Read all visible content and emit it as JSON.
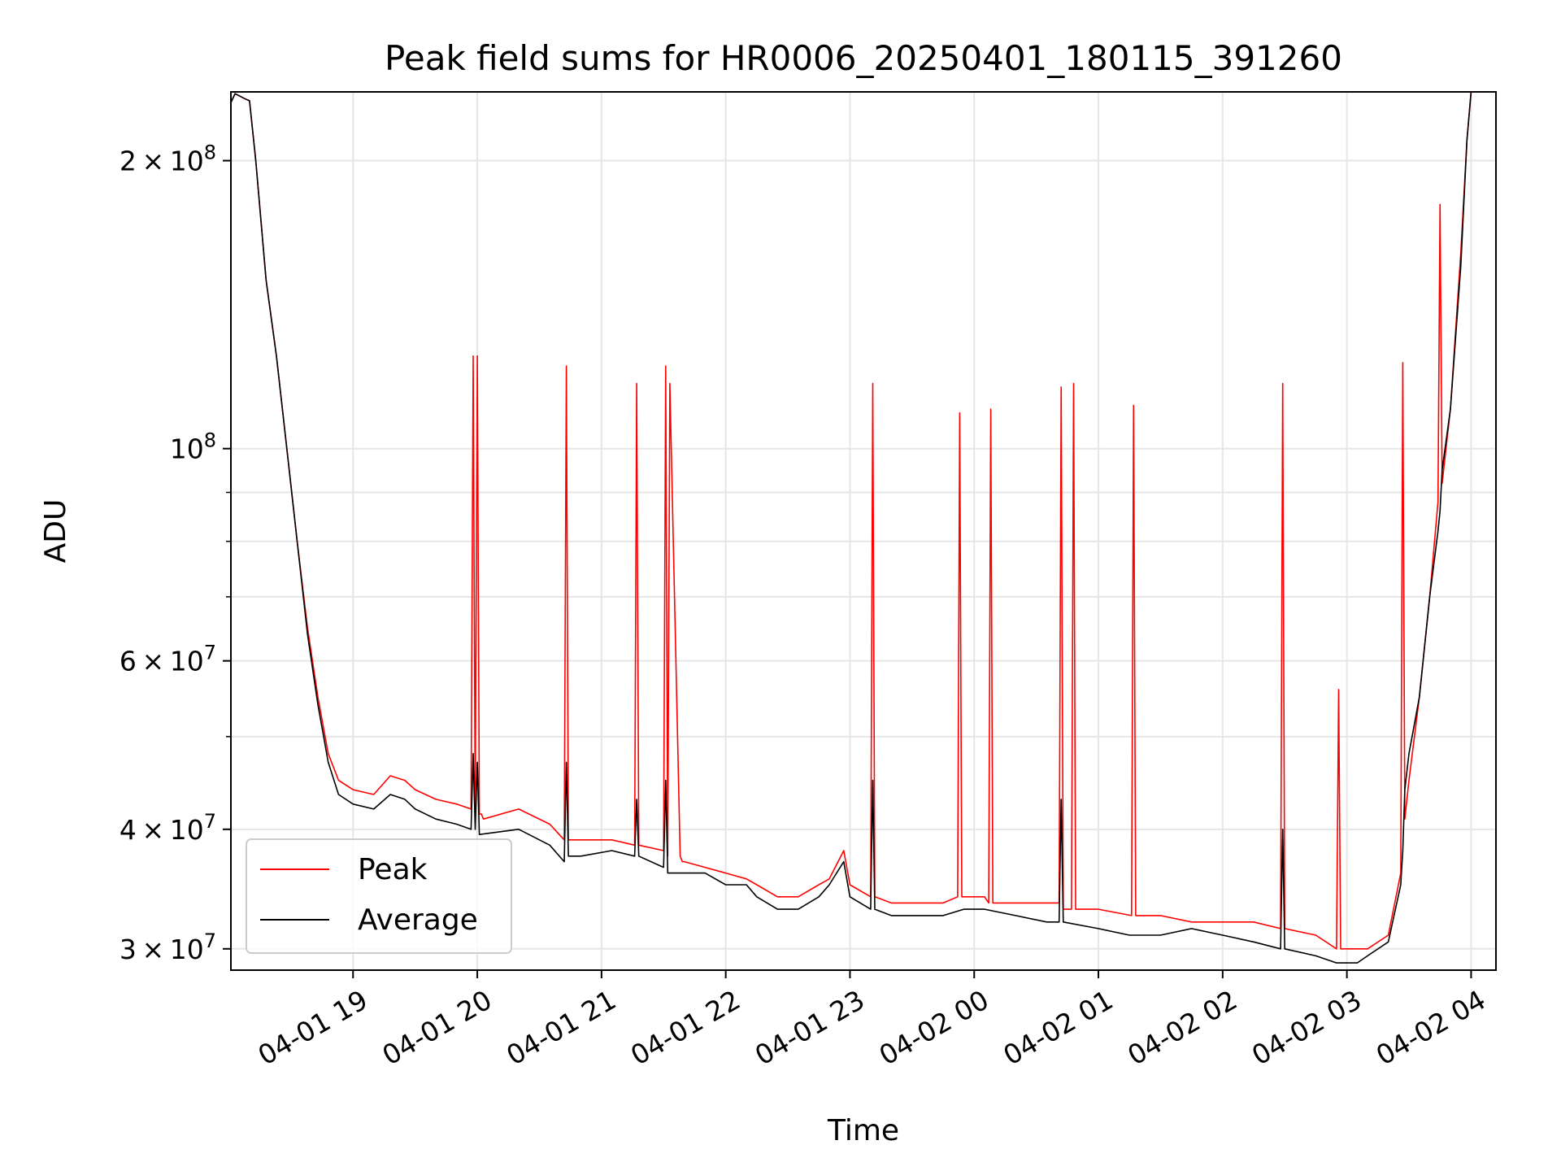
{
  "chart_data": {
    "type": "line",
    "title": "Peak field sums for HR0006_20250401_180115_391260",
    "xlabel": "Time",
    "ylabel": "ADU",
    "yscale": "log",
    "ylim": [
      28500000,
      236000000
    ],
    "xlim": [
      "2025-04-01 18:01",
      "2025-04-02 04:12"
    ],
    "grid": true,
    "legend_position": "lower-left",
    "x_ticks": [
      "2025-04-01 19:00",
      "2025-04-01 20:00",
      "2025-04-01 21:00",
      "2025-04-01 22:00",
      "2025-04-01 23:00",
      "2025-04-02 00:00",
      "2025-04-02 01:00",
      "2025-04-02 02:00",
      "2025-04-02 03:00",
      "2025-04-02 04:00"
    ],
    "x_tick_labels": [
      "04-01 19",
      "04-01 20",
      "04-01 21",
      "04-01 22",
      "04-01 23",
      "04-02 00",
      "04-02 01",
      "04-02 02",
      "04-02 03",
      "04-02 04"
    ],
    "y_ticks": [
      30000000,
      40000000,
      60000000,
      100000000,
      200000000
    ],
    "y_tick_labels": [
      {
        "base": "3 × 10",
        "exp": "7"
      },
      {
        "base": "4 × 10",
        "exp": "7"
      },
      {
        "base": "6 × 10",
        "exp": "7"
      },
      {
        "base": "10",
        "exp": "8"
      },
      {
        "base": "2 × 10",
        "exp": "8"
      }
    ],
    "y_minor_ticks": [
      50000000,
      70000000,
      80000000,
      90000000
    ],
    "series": [
      {
        "name": "Peak",
        "color": "#ff0000",
        "x": [
          "2025-04-01 18:01",
          "2025-04-01 18:03",
          "2025-04-01 18:08",
          "2025-04-01 18:10",
          "2025-04-01 18:13",
          "2025-04-01 18:18",
          "2025-04-01 18:23",
          "2025-04-01 18:28",
          "2025-04-01 18:33",
          "2025-04-01 18:38",
          "2025-04-01 18:43",
          "2025-04-01 18:48",
          "2025-04-01 18:53",
          "2025-04-01 19:00",
          "2025-04-01 19:10",
          "2025-04-01 19:18",
          "2025-04-01 19:25",
          "2025-04-01 19:30",
          "2025-04-01 19:40",
          "2025-04-01 19:50",
          "2025-04-01 19:57",
          "2025-04-01 19:58",
          "2025-04-01 19:59",
          "2025-04-01 20:00",
          "2025-04-01 20:01",
          "2025-04-01 20:02",
          "2025-04-01 20:03",
          "2025-04-01 20:20",
          "2025-04-01 20:35",
          "2025-04-01 20:42",
          "2025-04-01 20:43",
          "2025-04-01 20:44",
          "2025-04-01 20:50",
          "2025-04-01 21:05",
          "2025-04-01 21:16",
          "2025-04-01 21:17",
          "2025-04-01 21:18",
          "2025-04-01 21:30",
          "2025-04-01 21:31",
          "2025-04-01 21:32",
          "2025-04-01 21:33",
          "2025-04-01 21:38",
          "2025-04-01 21:39",
          "2025-04-01 21:40",
          "2025-04-01 21:50",
          "2025-04-01 22:00",
          "2025-04-01 22:10",
          "2025-04-01 22:15",
          "2025-04-01 22:25",
          "2025-04-01 22:35",
          "2025-04-01 22:45",
          "2025-04-01 22:50",
          "2025-04-01 22:57",
          "2025-04-01 23:00",
          "2025-04-01 23:10",
          "2025-04-01 23:11",
          "2025-04-01 23:12",
          "2025-04-01 23:20",
          "2025-04-01 23:35",
          "2025-04-01 23:45",
          "2025-04-01 23:52",
          "2025-04-01 23:53",
          "2025-04-01 23:54",
          "2025-04-02 00:05",
          "2025-04-02 00:07",
          "2025-04-02 00:08",
          "2025-04-02 00:09",
          "2025-04-02 00:20",
          "2025-04-02 00:35",
          "2025-04-02 00:41",
          "2025-04-02 00:42",
          "2025-04-02 00:43",
          "2025-04-02 00:47",
          "2025-04-02 00:48",
          "2025-04-02 00:49",
          "2025-04-02 01:00",
          "2025-04-02 01:16",
          "2025-04-02 01:17",
          "2025-04-02 01:18",
          "2025-04-02 01:30",
          "2025-04-02 01:45",
          "2025-04-02 02:00",
          "2025-04-02 02:15",
          "2025-04-02 02:28",
          "2025-04-02 02:29",
          "2025-04-02 02:30",
          "2025-04-02 02:45",
          "2025-04-02 02:55",
          "2025-04-02 02:56",
          "2025-04-02 02:57",
          "2025-04-02 03:05",
          "2025-04-02 03:10",
          "2025-04-02 03:20",
          "2025-04-02 03:26",
          "2025-04-02 03:27",
          "2025-04-02 03:28",
          "2025-04-02 03:30",
          "2025-04-02 03:35",
          "2025-04-02 03:40",
          "2025-04-02 03:44",
          "2025-04-02 03:45",
          "2025-04-02 03:46",
          "2025-04-02 03:50",
          "2025-04-02 03:55",
          "2025-04-02 03:58",
          "2025-04-02 04:00"
        ],
        "values": [
          230000000,
          235000000,
          232000000,
          231000000,
          200000000,
          150000000,
          125000000,
          100000000,
          80000000,
          65000000,
          55000000,
          48000000,
          45000000,
          44000000,
          43500000,
          45500000,
          45000000,
          44000000,
          43000000,
          42500000,
          42000000,
          125000000,
          42000000,
          125000000,
          41500000,
          41500000,
          41000000,
          42000000,
          40500000,
          39000000,
          122000000,
          39000000,
          39000000,
          39000000,
          38500000,
          117000000,
          38500000,
          38000000,
          122000000,
          37500000,
          117000000,
          37500000,
          37000000,
          37000000,
          36500000,
          36000000,
          35500000,
          35000000,
          34000000,
          34000000,
          35000000,
          35500000,
          38000000,
          35000000,
          34000000,
          117000000,
          34000000,
          33500000,
          33500000,
          33500000,
          34000000,
          109000000,
          34000000,
          34000000,
          33500000,
          110000000,
          33500000,
          33500000,
          33500000,
          33500000,
          116000000,
          33000000,
          33000000,
          117000000,
          33000000,
          33000000,
          32500000,
          111000000,
          32500000,
          32500000,
          32000000,
          32000000,
          32000000,
          31500000,
          117000000,
          31500000,
          31000000,
          30000000,
          56000000,
          30000000,
          30000000,
          30000000,
          31000000,
          36000000,
          123000000,
          41000000,
          45000000,
          55000000,
          70000000,
          88000000,
          180000000,
          92000000,
          110000000,
          160000000,
          210000000,
          236000000
        ]
      },
      {
        "name": "Average",
        "color": "#000000",
        "x": [
          "2025-04-01 18:01",
          "2025-04-01 18:03",
          "2025-04-01 18:08",
          "2025-04-01 18:10",
          "2025-04-01 18:13",
          "2025-04-01 18:18",
          "2025-04-01 18:23",
          "2025-04-01 18:28",
          "2025-04-01 18:33",
          "2025-04-01 18:38",
          "2025-04-01 18:43",
          "2025-04-01 18:48",
          "2025-04-01 18:53",
          "2025-04-01 19:00",
          "2025-04-01 19:10",
          "2025-04-01 19:18",
          "2025-04-01 19:25",
          "2025-04-01 19:30",
          "2025-04-01 19:40",
          "2025-04-01 19:50",
          "2025-04-01 19:57",
          "2025-04-01 19:58",
          "2025-04-01 19:59",
          "2025-04-01 20:00",
          "2025-04-01 20:01",
          "2025-04-01 20:20",
          "2025-04-01 20:35",
          "2025-04-01 20:42",
          "2025-04-01 20:43",
          "2025-04-01 20:44",
          "2025-04-01 20:50",
          "2025-04-01 21:05",
          "2025-04-01 21:16",
          "2025-04-01 21:17",
          "2025-04-01 21:18",
          "2025-04-01 21:30",
          "2025-04-01 21:31",
          "2025-04-01 21:32",
          "2025-04-01 21:33",
          "2025-04-01 21:50",
          "2025-04-01 22:00",
          "2025-04-01 22:10",
          "2025-04-01 22:15",
          "2025-04-01 22:25",
          "2025-04-01 22:35",
          "2025-04-01 22:45",
          "2025-04-01 22:50",
          "2025-04-01 22:57",
          "2025-04-01 23:00",
          "2025-04-01 23:10",
          "2025-04-01 23:11",
          "2025-04-01 23:12",
          "2025-04-01 23:20",
          "2025-04-01 23:35",
          "2025-04-01 23:45",
          "2025-04-01 23:55",
          "2025-04-02 00:05",
          "2025-04-02 00:20",
          "2025-04-02 00:35",
          "2025-04-02 00:41",
          "2025-04-02 00:42",
          "2025-04-02 00:43",
          "2025-04-02 01:00",
          "2025-04-02 01:15",
          "2025-04-02 01:30",
          "2025-04-02 01:45",
          "2025-04-02 02:00",
          "2025-04-02 02:15",
          "2025-04-02 02:28",
          "2025-04-02 02:29",
          "2025-04-02 02:30",
          "2025-04-02 02:45",
          "2025-04-02 02:55",
          "2025-04-02 03:05",
          "2025-04-02 03:10",
          "2025-04-02 03:20",
          "2025-04-02 03:26",
          "2025-04-02 03:27",
          "2025-04-02 03:28",
          "2025-04-02 03:30",
          "2025-04-02 03:35",
          "2025-04-02 03:40",
          "2025-04-02 03:44",
          "2025-04-02 03:45",
          "2025-04-02 03:46",
          "2025-04-02 03:50",
          "2025-04-02 03:55",
          "2025-04-02 03:58",
          "2025-04-02 04:00"
        ],
        "values": [
          230000000,
          235000000,
          232000000,
          231000000,
          200000000,
          150000000,
          125000000,
          100000000,
          80000000,
          64000000,
          54000000,
          47000000,
          43500000,
          42500000,
          42000000,
          43500000,
          43000000,
          42000000,
          41000000,
          40500000,
          40000000,
          48000000,
          40000000,
          47000000,
          39500000,
          40000000,
          38500000,
          37000000,
          47000000,
          37500000,
          37500000,
          38000000,
          37500000,
          43000000,
          37500000,
          36500000,
          45000000,
          36000000,
          36000000,
          36000000,
          35000000,
          35000000,
          34000000,
          33000000,
          33000000,
          34000000,
          35000000,
          37000000,
          34000000,
          33000000,
          45000000,
          33000000,
          32500000,
          32500000,
          32500000,
          33000000,
          33000000,
          32500000,
          32000000,
          32000000,
          43000000,
          32000000,
          31500000,
          31000000,
          31000000,
          31500000,
          31000000,
          30500000,
          30000000,
          40000000,
          30000000,
          29500000,
          29000000,
          29000000,
          29500000,
          30500000,
          35000000,
          38000000,
          44000000,
          48000000,
          55000000,
          70000000,
          82000000,
          86000000,
          95000000,
          110000000,
          155000000,
          210000000,
          236000000
        ]
      }
    ]
  }
}
